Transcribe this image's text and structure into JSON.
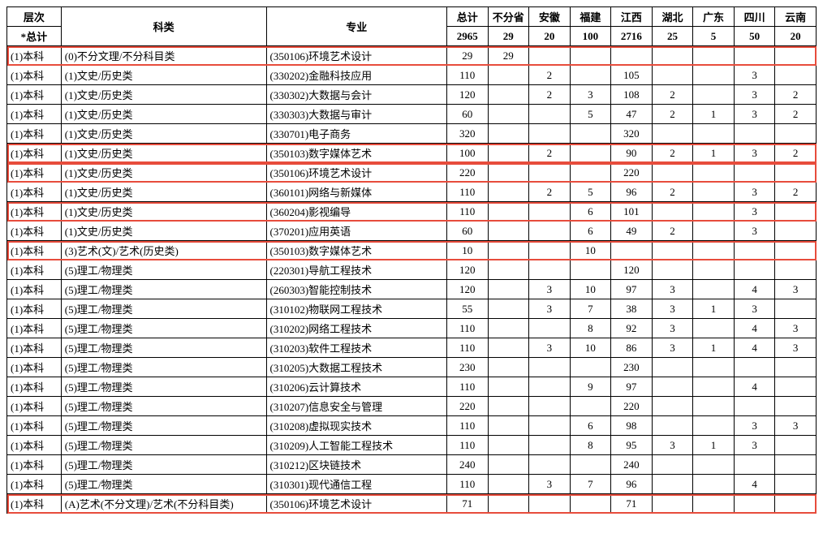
{
  "headers": {
    "level": "层次",
    "category": "科类",
    "major": "专业",
    "total_label": "*总计",
    "provinces": [
      "总计",
      "不分省",
      "安徽",
      "福建",
      "江西",
      "湖北",
      "广东",
      "四川",
      "云南"
    ],
    "province_totals": [
      "2965",
      "29",
      "20",
      "100",
      "2716",
      "25",
      "5",
      "50",
      "20"
    ]
  },
  "highlight_color": "#e74c3c",
  "rows": [
    {
      "hl": true,
      "level": "(1)本科",
      "cat": "(0)不分文理/不分科目类",
      "major": "(350106)环境艺术设计",
      "vals": [
        "29",
        "29",
        "",
        "",
        "",
        "",
        "",
        "",
        ""
      ]
    },
    {
      "hl": false,
      "level": "(1)本科",
      "cat": "(1)文史/历史类",
      "major": "(330202)金融科技应用",
      "vals": [
        "110",
        "",
        "2",
        "",
        "105",
        "",
        "",
        "3",
        ""
      ]
    },
    {
      "hl": false,
      "level": "(1)本科",
      "cat": "(1)文史/历史类",
      "major": "(330302)大数据与会计",
      "vals": [
        "120",
        "",
        "2",
        "3",
        "108",
        "2",
        "",
        "3",
        "2"
      ]
    },
    {
      "hl": false,
      "level": "(1)本科",
      "cat": "(1)文史/历史类",
      "major": "(330303)大数据与审计",
      "vals": [
        "60",
        "",
        "",
        "5",
        "47",
        "2",
        "1",
        "3",
        "2"
      ]
    },
    {
      "hl": false,
      "level": "(1)本科",
      "cat": "(1)文史/历史类",
      "major": "(330701)电子商务",
      "vals": [
        "320",
        "",
        "",
        "",
        "320",
        "",
        "",
        "",
        ""
      ]
    },
    {
      "hl": true,
      "level": "(1)本科",
      "cat": "(1)文史/历史类",
      "major": "(350103)数字媒体艺术",
      "vals": [
        "100",
        "",
        "2",
        "",
        "90",
        "2",
        "1",
        "3",
        "2"
      ]
    },
    {
      "hl": true,
      "level": "(1)本科",
      "cat": "(1)文史/历史类",
      "major": "(350106)环境艺术设计",
      "vals": [
        "220",
        "",
        "",
        "",
        "220",
        "",
        "",
        "",
        ""
      ]
    },
    {
      "hl": false,
      "level": "(1)本科",
      "cat": "(1)文史/历史类",
      "major": "(360101)网络与新媒体",
      "vals": [
        "110",
        "",
        "2",
        "5",
        "96",
        "2",
        "",
        "3",
        "2"
      ]
    },
    {
      "hl": true,
      "level": "(1)本科",
      "cat": "(1)文史/历史类",
      "major": "(360204)影视编导",
      "vals": [
        "110",
        "",
        "",
        "6",
        "101",
        "",
        "",
        "3",
        ""
      ]
    },
    {
      "hl": false,
      "level": "(1)本科",
      "cat": "(1)文史/历史类",
      "major": "(370201)应用英语",
      "vals": [
        "60",
        "",
        "",
        "6",
        "49",
        "2",
        "",
        "3",
        ""
      ]
    },
    {
      "hl": true,
      "level": "(1)本科",
      "cat": "(3)艺术(文)/艺术(历史类)",
      "major": "(350103)数字媒体艺术",
      "vals": [
        "10",
        "",
        "",
        "10",
        "",
        "",
        "",
        "",
        ""
      ]
    },
    {
      "hl": false,
      "level": "(1)本科",
      "cat": "(5)理工/物理类",
      "major": "(220301)导航工程技术",
      "vals": [
        "120",
        "",
        "",
        "",
        "120",
        "",
        "",
        "",
        ""
      ]
    },
    {
      "hl": false,
      "level": "(1)本科",
      "cat": "(5)理工/物理类",
      "major": "(260303)智能控制技术",
      "vals": [
        "120",
        "",
        "3",
        "10",
        "97",
        "3",
        "",
        "4",
        "3"
      ]
    },
    {
      "hl": false,
      "level": "(1)本科",
      "cat": "(5)理工/物理类",
      "major": "(310102)物联网工程技术",
      "vals": [
        "55",
        "",
        "3",
        "7",
        "38",
        "3",
        "1",
        "3",
        ""
      ]
    },
    {
      "hl": false,
      "level": "(1)本科",
      "cat": "(5)理工/物理类",
      "major": "(310202)网络工程技术",
      "vals": [
        "110",
        "",
        "",
        "8",
        "92",
        "3",
        "",
        "4",
        "3"
      ]
    },
    {
      "hl": false,
      "level": "(1)本科",
      "cat": "(5)理工/物理类",
      "major": "(310203)软件工程技术",
      "vals": [
        "110",
        "",
        "3",
        "10",
        "86",
        "3",
        "1",
        "4",
        "3"
      ]
    },
    {
      "hl": false,
      "level": "(1)本科",
      "cat": "(5)理工/物理类",
      "major": "(310205)大数据工程技术",
      "vals": [
        "230",
        "",
        "",
        "",
        "230",
        "",
        "",
        "",
        ""
      ]
    },
    {
      "hl": false,
      "level": "(1)本科",
      "cat": "(5)理工/物理类",
      "major": "(310206)云计算技术",
      "vals": [
        "110",
        "",
        "",
        "9",
        "97",
        "",
        "",
        "4",
        ""
      ]
    },
    {
      "hl": false,
      "level": "(1)本科",
      "cat": "(5)理工/物理类",
      "major": "(310207)信息安全与管理",
      "vals": [
        "220",
        "",
        "",
        "",
        "220",
        "",
        "",
        "",
        ""
      ]
    },
    {
      "hl": false,
      "level": "(1)本科",
      "cat": "(5)理工/物理类",
      "major": "(310208)虚拟现实技术",
      "vals": [
        "110",
        "",
        "",
        "6",
        "98",
        "",
        "",
        "3",
        "3"
      ]
    },
    {
      "hl": false,
      "level": "(1)本科",
      "cat": "(5)理工/物理类",
      "major": "(310209)人工智能工程技术",
      "vals": [
        "110",
        "",
        "",
        "8",
        "95",
        "3",
        "1",
        "3",
        ""
      ]
    },
    {
      "hl": false,
      "level": "(1)本科",
      "cat": "(5)理工/物理类",
      "major": "(310212)区块链技术",
      "vals": [
        "240",
        "",
        "",
        "",
        "240",
        "",
        "",
        "",
        ""
      ]
    },
    {
      "hl": false,
      "level": "(1)本科",
      "cat": "(5)理工/物理类",
      "major": "(310301)现代通信工程",
      "vals": [
        "110",
        "",
        "3",
        "7",
        "96",
        "",
        "",
        "4",
        ""
      ]
    },
    {
      "hl": true,
      "level": "(1)本科",
      "cat": "(A)艺术(不分文理)/艺术(不分科目类)",
      "major": "(350106)环境艺术设计",
      "vals": [
        "71",
        "",
        "",
        "",
        "71",
        "",
        "",
        "",
        ""
      ]
    }
  ]
}
